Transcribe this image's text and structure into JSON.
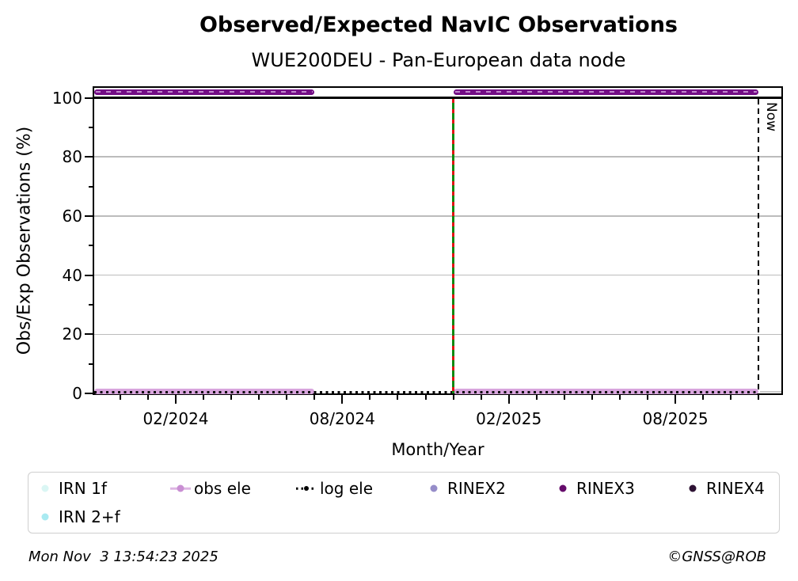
{
  "chart_data": {
    "type": "line",
    "title": "Observed/Expected NavIC Observations",
    "subtitle": "WUE200DEU - Pan-European data node",
    "xlabel": "Month/Year",
    "ylabel": "Obs/Exp Observations (%)",
    "x_range": [
      "11/2023",
      "12/2025"
    ],
    "ylim": [
      0,
      103.3
    ],
    "x_ticks_major": [
      "02/2024",
      "08/2024",
      "02/2025",
      "08/2025"
    ],
    "x_minor_ticks": {
      "start": "12/2023",
      "end": "12/2025",
      "step_months": 1
    },
    "y_ticks_major": [
      0,
      20,
      40,
      60,
      80,
      100
    ],
    "y_ticks_minor": [
      10,
      30,
      50,
      70,
      90
    ],
    "gridlines_y": [
      20,
      40,
      60,
      80
    ],
    "grid_color": "#bcbcbc",
    "reference_line_y": 100,
    "series": [
      {
        "name": "RINEX3",
        "style": "thick-dashed",
        "color": "#730d85",
        "stripe_color": "#c088cc",
        "value": 102,
        "segments": [
          [
            "11/2023",
            "07/2024"
          ],
          [
            "12/2024",
            "11/2025"
          ]
        ]
      },
      {
        "name": "obs ele",
        "style": "thick",
        "color": "#d8a5dd",
        "value": 0.8,
        "segments": [
          [
            "11/2023",
            "07/2024"
          ],
          [
            "12/2024",
            "11/2025"
          ]
        ]
      },
      {
        "name": "log ele",
        "style": "dotted",
        "color": "#0a0a0a",
        "value": 0,
        "segments": [
          [
            "11/2023",
            "11/2025"
          ]
        ]
      }
    ],
    "markers": [
      {
        "name": "data-start",
        "type": "vline",
        "x": "12/2024",
        "color": "#0e8a12",
        "dash_color": "#e21414",
        "label": ""
      },
      {
        "name": "now",
        "type": "vline-dashed",
        "x": "11/2025",
        "color": "#000000",
        "label": "Now"
      }
    ],
    "post_now_baseline": {
      "color": "#c9c9c9"
    },
    "legend": {
      "position": "below",
      "items": [
        {
          "label": "IRN 1f",
          "marker": "dot",
          "color": "#daf6f4"
        },
        {
          "label": "obs ele",
          "marker": "dot-line",
          "color": "#c98fd3",
          "line_color": "#ddb6e3"
        },
        {
          "label": "log ele",
          "marker": "dotted-line",
          "color": "#000000"
        },
        {
          "label": "RINEX2",
          "marker": "dot",
          "color": "#968dc9"
        },
        {
          "label": "RINEX3",
          "marker": "dot",
          "color": "#650c6b"
        },
        {
          "label": "RINEX4",
          "marker": "dot",
          "color": "#2e1334"
        },
        {
          "label": "IRN 2+f",
          "marker": "dot",
          "color": "#a9eaf1"
        }
      ]
    },
    "footer_left": "Mon Nov  3 13:54:23 2025",
    "footer_right": "©GNSS@ROB"
  }
}
